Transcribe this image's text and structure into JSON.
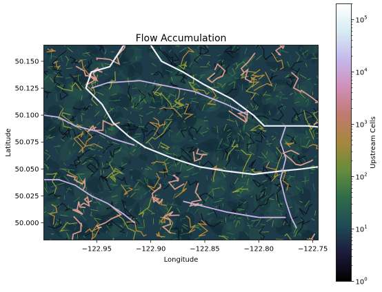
{
  "chart_data": {
    "type": "heatmap",
    "title": "Flow Accumulation",
    "xlabel": "Longitude",
    "ylabel": "Latitude",
    "xlim": [
      -122.999,
      -122.745
    ],
    "ylim": [
      49.984,
      50.165
    ],
    "x_ticks": [
      -122.95,
      -122.9,
      -122.85,
      -122.8,
      -122.75
    ],
    "x_tick_labels": [
      "−122.95",
      "−122.90",
      "−122.85",
      "−122.80",
      "−122.75"
    ],
    "y_ticks": [
      50.0,
      50.025,
      50.05,
      50.075,
      50.1,
      50.125,
      50.15
    ],
    "y_tick_labels": [
      "50.000",
      "50.025",
      "50.050",
      "50.075",
      "50.100",
      "50.125",
      "50.150"
    ],
    "colorbar": {
      "label": "Upstream Cells",
      "scale": "log",
      "range": [
        1,
        200000
      ],
      "ticks": [
        1,
        10,
        100,
        1000,
        10000,
        100000
      ],
      "tick_labels": [
        {
          "base": "10",
          "exp": "0"
        },
        {
          "base": "10",
          "exp": "1"
        },
        {
          "base": "10",
          "exp": "2"
        },
        {
          "base": "10",
          "exp": "3"
        },
        {
          "base": "10",
          "exp": "4"
        },
        {
          "base": "10",
          "exp": "5"
        }
      ]
    },
    "colormap": [
      "#000000",
      "#1c1a3a",
      "#1f4a56",
      "#2e6b4a",
      "#668c3c",
      "#a5873d",
      "#c07a70",
      "#d08fb9",
      "#c5b9ec",
      "#d6ecf2",
      "#ffffff"
    ],
    "grid": false
  }
}
